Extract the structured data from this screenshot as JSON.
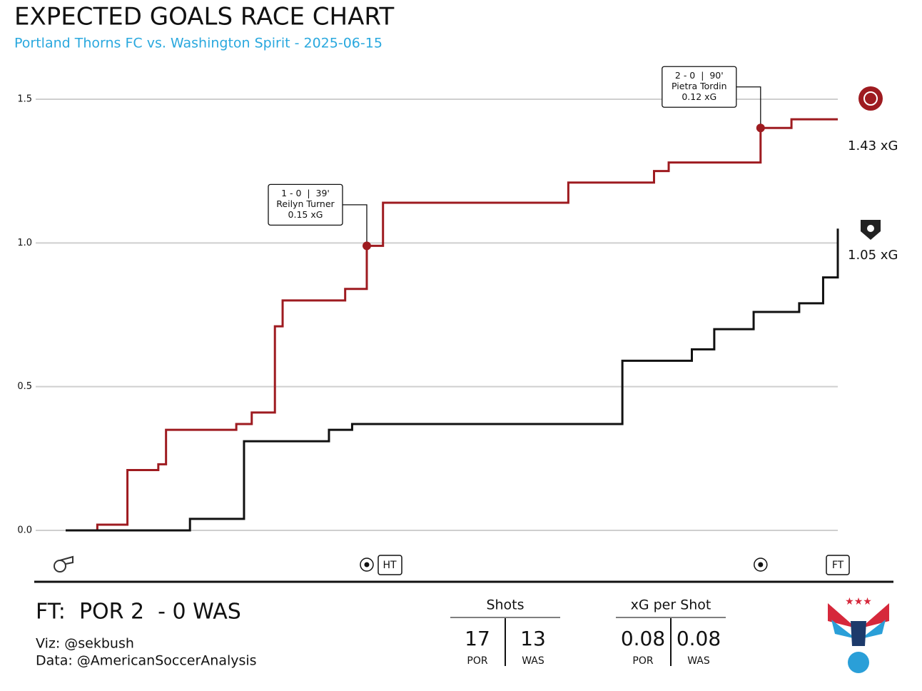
{
  "chart_data": {
    "type": "step",
    "title": "EXPECTED GOALS RACE CHART",
    "subtitle": "Portland Thorns FC vs. Washington Spirit - 2025-06-15",
    "xlim": [
      0,
      100
    ],
    "ylim": [
      0,
      1.5
    ],
    "yticks": [
      {
        "value": 0,
        "label": "0.0"
      },
      0.5,
      {
        "value": 1,
        "label": "1.0"
      },
      1.5
    ],
    "grid": true,
    "series": [
      {
        "name": "POR",
        "color": "#9e1b20",
        "end_label": "1.43 xG",
        "x": [
          0,
          4.1,
          8,
          12,
          13,
          22.1,
          24.1,
          27.1,
          28.1,
          36.2,
          39,
          41.1,
          65.1,
          76.2,
          78.1,
          90,
          94,
          100
        ],
        "values": [
          0,
          0.02,
          0.21,
          0.23,
          0.35,
          0.37,
          0.41,
          0.71,
          0.8,
          0.84,
          0.99,
          1.14,
          1.21,
          1.25,
          1.28,
          1.4,
          1.43,
          1.43
        ]
      },
      {
        "name": "WAS",
        "color": "#111111",
        "end_label": "1.05 xG",
        "x": [
          0,
          16.1,
          23.1,
          34.1,
          37.1,
          72.1,
          81.1,
          84,
          89.1,
          95,
          98.1,
          100
        ],
        "values": [
          0,
          0.04,
          0.31,
          0.35,
          0.37,
          0.59,
          0.63,
          0.7,
          0.76,
          0.79,
          0.88,
          1.05
        ]
      }
    ],
    "annotations": [
      {
        "series": 0,
        "x": 39,
        "heading": "1 - 0  |  39'",
        "player": "Reilyn Turner",
        "xg_label": "0.15 xG"
      },
      {
        "series": 0,
        "x": 90,
        "heading": "2 - 0  |  90'",
        "player": "Pietra Tordin",
        "xg_label": "0.12 xG"
      }
    ],
    "ht_label": "HT",
    "ft_label": "FT",
    "score": "FT:  POR 2  - 0 WAS",
    "credits": [
      "Viz: @sekbush",
      "Data: @AmericanSoccerAnalysis"
    ],
    "stats": [
      {
        "title": "Shots",
        "home": "17",
        "away": "13",
        "home_label": "POR",
        "away_label": "WAS"
      },
      {
        "title": "xG per Shot",
        "home": "0.08",
        "away": "0.08",
        "home_label": "POR",
        "away_label": "WAS"
      }
    ]
  }
}
